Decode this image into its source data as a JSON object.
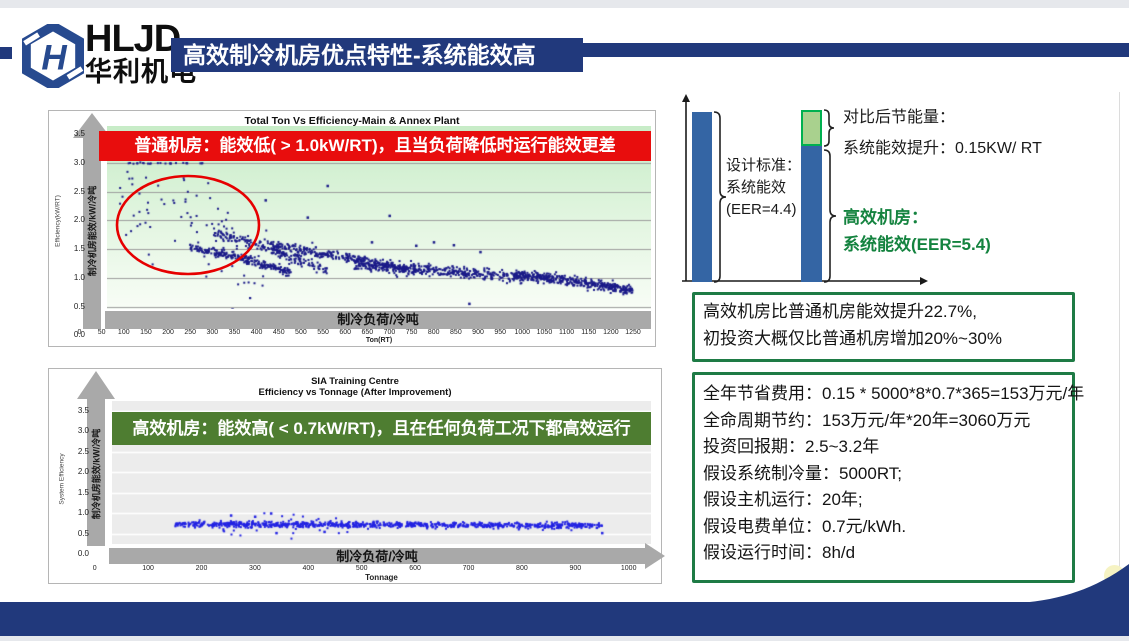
{
  "header": {
    "logo_abbr": "HLJD",
    "logo_name": "华利机电",
    "title": "高效制冷机房优点特性-系统能效高"
  },
  "chart_data": [
    {
      "id": "main-annex-plant",
      "type": "scatter",
      "title": "Total Ton Vs Efficiency-Main & Annex Plant",
      "xlabel": "Ton(RT)",
      "xlabel_band": "制冷负荷/冷吨",
      "ylabel": "Efficiency(kW/RT)",
      "ylabel_band": "制冷机房能效/kW/冷吨",
      "xlim": [
        0,
        1250
      ],
      "ylim": [
        0,
        3.5
      ],
      "xticks": [
        0,
        50,
        100,
        150,
        200,
        250,
        300,
        350,
        400,
        450,
        500,
        550,
        600,
        650,
        700,
        750,
        800,
        850,
        900,
        950,
        1000,
        1050,
        1100,
        1150,
        1200,
        1250
      ],
      "yticks": [
        "0.0",
        "0.5",
        "1.0",
        "1.5",
        "2.0",
        "2.5",
        "3.0",
        "3.5"
      ],
      "grid": true,
      "plot_bg_top": "#c7ecc7",
      "plot_bg_bottom": "#f8fdf6",
      "point_color": "#1a1a88",
      "banner": {
        "text": "普通机房：能效低( > 1.0kW/RT)，且当负荷降低时运行能效更差",
        "bg": "#e80d0d",
        "fg": "#ffffff"
      },
      "ellipse_annotation": {
        "x_range": [
          90,
          430
        ],
        "y_range": [
          0.95,
          2.9
        ],
        "color": "#e60000"
      },
      "bands": [
        {
          "x0": 250,
          "x1": 480,
          "y0": 1.52,
          "y1": 1.08,
          "sd": 0.035,
          "n": 260
        },
        {
          "x0": 300,
          "x1": 560,
          "y0": 1.78,
          "y1": 1.12,
          "sd": 0.05,
          "n": 200
        },
        {
          "x0": 430,
          "x1": 760,
          "y0": 1.55,
          "y1": 1.1,
          "sd": 0.045,
          "n": 320
        },
        {
          "x0": 620,
          "x1": 1000,
          "y0": 1.22,
          "y1": 1.0,
          "sd": 0.05,
          "n": 380
        },
        {
          "x0": 980,
          "x1": 1250,
          "y0": 1.05,
          "y1": 0.78,
          "sd": 0.045,
          "n": 430
        },
        {
          "x0": 90,
          "x1": 430,
          "y0": 2.6,
          "y1": 1.15,
          "sd": 0.45,
          "n": 85
        },
        {
          "x0": 110,
          "x1": 300,
          "y0": 2.99,
          "y1": 2.99,
          "sd": 0.004,
          "n": 24
        }
      ],
      "outliers": [
        [
          345,
          0.45
        ],
        [
          880,
          0.55
        ],
        [
          560,
          2.6
        ],
        [
          515,
          2.05
        ],
        [
          420,
          2.35
        ],
        [
          700,
          2.08
        ],
        [
          660,
          1.62
        ],
        [
          760,
          1.56
        ],
        [
          800,
          1.62
        ],
        [
          845,
          1.57
        ],
        [
          905,
          1.45
        ]
      ]
    },
    {
      "id": "sia-training-centre",
      "type": "scatter",
      "title_lines": [
        "SIA Training Centre",
        "Efficiency vs Tonnage (After Improvement)"
      ],
      "xlabel": "Tonnage",
      "xlabel_band": "制冷负荷/冷吨",
      "ylabel": "System Efficiency",
      "ylabel_band": "制冷机房能效/kW/冷吨",
      "xlim": [
        0,
        1000
      ],
      "ylim": [
        0,
        3.5
      ],
      "xticks": [
        0,
        100,
        200,
        300,
        400,
        500,
        600,
        700,
        800,
        900,
        1000
      ],
      "yticks": [
        "0.0",
        "0.5",
        "1.0",
        "1.5",
        "2.0",
        "2.5",
        "3.0",
        "3.5"
      ],
      "grid": true,
      "plot_bg": "#ececec",
      "point_color": "#2222e2",
      "banner": {
        "text": "高效机房：能效高( < 0.7kW/RT)，且在任何负荷工况下都高效运行",
        "bg": "#4e7d31",
        "fg": "#ffffff"
      },
      "bands": [
        {
          "x0": 150,
          "x1": 950,
          "y0": 0.73,
          "y1": 0.7,
          "sd": 0.035,
          "n": 900
        },
        {
          "x0": 230,
          "x1": 520,
          "y0": 0.72,
          "y1": 0.68,
          "sd": 0.13,
          "n": 55
        }
      ],
      "outliers": [
        [
          330,
          1.0
        ],
        [
          255,
          0.95
        ],
        [
          300,
          0.92
        ],
        [
          340,
          0.52
        ],
        [
          430,
          0.55
        ],
        [
          950,
          0.52
        ],
        [
          940,
          0.65
        ]
      ]
    },
    {
      "id": "eer-comparison",
      "type": "bar",
      "categories": [
        "设计标准",
        "高效机房"
      ],
      "series": [
        {
          "name": "系统能效 EER",
          "values": [
            4.4,
            5.4
          ]
        }
      ],
      "bar_color": "#3465a4",
      "saving_fill": "#a9d18e",
      "saving_stroke": "#00b050",
      "annotations": {
        "left_label_lines": [
          "设计标准：",
          "系统能效",
          "(EER=4.4)"
        ],
        "saving_lines": [
          "对比后节能量：",
          "系统能效提升：0.15KW/ RT"
        ],
        "efficient_lines": [
          "高效机房：",
          "系统能效(EER=5.4)"
        ]
      }
    }
  ],
  "notes": {
    "benefit_box_lines": [
      "高效机房比普通机房能效提升22.7%,",
      "初投资大概仅比普通机房增加20%~30%"
    ],
    "assumption_box_lines": [
      "全年节省费用：0.15 * 5000*8*0.7*365=153万元/年",
      "全命周期节约：153万元/年*20年=3060万元",
      "投资回报期：2.5~3.2年",
      "假设系统制冷量：5000RT;",
      "假设主机运行：20年;",
      "假设电费单位：0.7元/kWh.",
      "假设运行时间：8h/d"
    ],
    "box_border_color": "#1e7b45"
  },
  "theme": {
    "navy": "#21397c",
    "arrow_gray": "#a9a9a9",
    "green_text": "#14833f"
  }
}
